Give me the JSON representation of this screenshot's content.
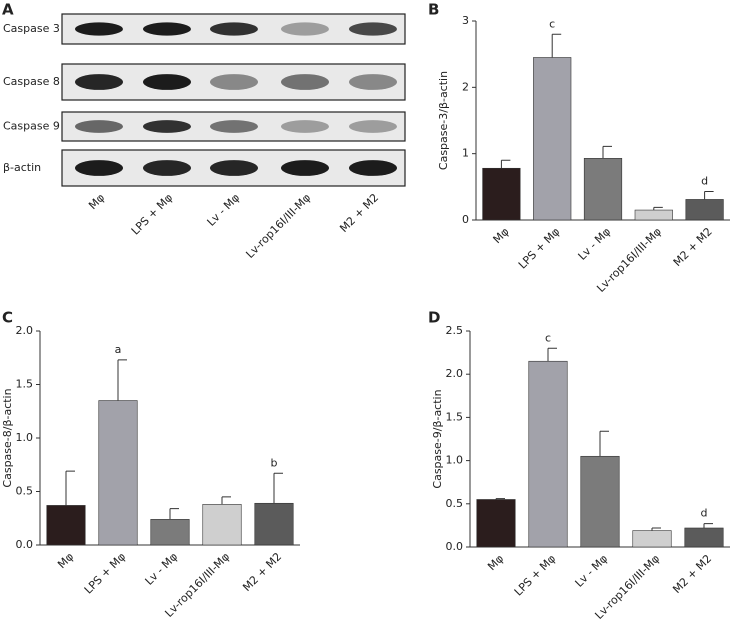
{
  "blot": {
    "panel": "A",
    "rows": [
      "Caspase 3",
      "Caspase 8",
      "Caspase 9",
      "β-actin"
    ],
    "lanes": [
      "Mφ",
      "LPS + Mφ",
      "Lv - Mφ",
      "Lv-rop16I/III-Mφ",
      "M2 + M2"
    ]
  },
  "chart_data": [
    {
      "type": "bar",
      "panel": "B",
      "ylabel": "Caspase-3/β-actin",
      "categories": [
        "Mφ",
        "LPS + Mφ",
        "Lv - Mφ",
        "Lv-rop16I/III-Mφ",
        "M2 + M2"
      ],
      "values": [
        0.78,
        2.45,
        0.93,
        0.15,
        0.31
      ],
      "errors": [
        0.12,
        0.35,
        0.18,
        0.04,
        0.12
      ],
      "bar_labels": [
        null,
        "c",
        null,
        null,
        "d"
      ],
      "colors": [
        "#2b1d1d",
        "#a2a2aa",
        "#7b7b7b",
        "#cfcfcf",
        "#5b5b5b"
      ],
      "ylim": [
        0,
        3
      ],
      "yticks": [
        0,
        1,
        2,
        3
      ]
    },
    {
      "type": "bar",
      "panel": "C",
      "ylabel": "Caspase-8/β-actin",
      "categories": [
        "Mφ",
        "LPS + Mφ",
        "Lv - Mφ",
        "Lv-rop16I/III-Mφ",
        "M2 + M2"
      ],
      "values": [
        0.37,
        1.35,
        0.24,
        0.38,
        0.39
      ],
      "errors": [
        0.32,
        0.38,
        0.1,
        0.07,
        0.28
      ],
      "bar_labels": [
        null,
        "a",
        null,
        null,
        "b"
      ],
      "colors": [
        "#2b1d1d",
        "#a2a2aa",
        "#7b7b7b",
        "#cfcfcf",
        "#5b5b5b"
      ],
      "ylim": [
        0,
        2
      ],
      "yticks": [
        {
          "value": 0,
          "label": "0.0"
        },
        0.5,
        {
          "value": 1,
          "label": "1.0"
        },
        1.5,
        {
          "value": 2,
          "label": "2.0"
        }
      ]
    },
    {
      "type": "bar",
      "panel": "D",
      "ylabel": "Caspase-9/β-actin",
      "categories": [
        "Mφ",
        "LPS + Mφ",
        "Lv - Mφ",
        "Lv-rop16I/III-Mφ",
        "M2 + M2"
      ],
      "values": [
        0.55,
        2.15,
        1.05,
        0.19,
        0.22
      ],
      "errors": [
        0.01,
        0.15,
        0.29,
        0.03,
        0.05
      ],
      "bar_labels": [
        null,
        "c",
        null,
        null,
        "d"
      ],
      "colors": [
        "#2b1d1d",
        "#a2a2aa",
        "#7b7b7b",
        "#cfcfcf",
        "#5b5b5b"
      ],
      "ylim": [
        0,
        2.5
      ],
      "yticks": [
        {
          "value": 0,
          "label": "0.0"
        },
        0.5,
        {
          "value": 1,
          "label": "1.0"
        },
        1.5,
        {
          "value": 2,
          "label": "2.0"
        },
        2.5
      ]
    }
  ]
}
